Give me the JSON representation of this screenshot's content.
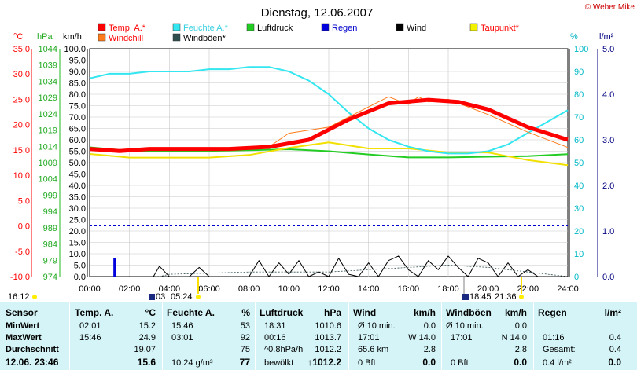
{
  "header": {
    "title": "Dienstag, 12.06.2007",
    "copyright": "© Weber Mike"
  },
  "legend": [
    {
      "label": "Temp. A.*",
      "color": "#ff0000",
      "text_color": "#ff0000"
    },
    {
      "label": "Feuchte A.*",
      "color": "#33e6f0",
      "text_color": "#33d0e0"
    },
    {
      "label": "Luftdruck",
      "color": "#22cc22",
      "text_color": "#000000"
    },
    {
      "label": "Regen",
      "color": "#0000dd",
      "text_color": "#0000cc"
    },
    {
      "label": "Wind",
      "color": "#000000",
      "text_color": "#000000"
    },
    {
      "label": "Taupunkt*",
      "color": "#f2f200",
      "text_color": "#ff0000"
    },
    {
      "label": "Windchill",
      "color": "#ff7a1a",
      "text_color": "#ff0000"
    },
    {
      "label": "Windböen*",
      "color": "#2f4f4f",
      "text_color": "#000000"
    }
  ],
  "axis_headers": {
    "temp": "°C",
    "pressure": "hPa",
    "wind": "km/h",
    "humidity": "%",
    "rain": "l/m²"
  },
  "events": {
    "left_time": "16:12",
    "sunrise_label": "03",
    "sunrise_time": "05:24",
    "sunset_time": "18:45",
    "moon_time": "21:36"
  },
  "chart_data": {
    "type": "line",
    "x_ticks": [
      "00:00",
      "02:00",
      "04:00",
      "06:00",
      "08:00",
      "10:00",
      "12:00",
      "14:00",
      "16:00",
      "18:00",
      "20:00",
      "22:00",
      "24:00"
    ],
    "axes": {
      "temp": {
        "min": -10,
        "max": 35,
        "ticks": [
          "35.0",
          "30.0",
          "25.0",
          "20.0",
          "15.0",
          "10.0",
          "5.0",
          "0.0",
          "-5.0",
          "-10.0"
        ]
      },
      "pressure": {
        "min": 974,
        "max": 1044,
        "ticks": [
          "1044",
          "1039",
          "1034",
          "1029",
          "1024",
          "1019",
          "1014",
          "1009",
          "1004",
          "999",
          "994",
          "989",
          "984",
          "979",
          "974"
        ]
      },
      "wind": {
        "min": 0,
        "max": 100,
        "ticks": [
          "100.0",
          "95.0",
          "90.0",
          "85.0",
          "80.0",
          "75.0",
          "70.0",
          "65.0",
          "60.0",
          "55.0",
          "50.0",
          "45.0",
          "40.0",
          "35.0",
          "30.0",
          "25.0",
          "20.0",
          "15.0",
          "10.0",
          "5.0",
          "0.0"
        ]
      },
      "humidity": {
        "min": 0,
        "max": 100,
        "ticks": [
          "100",
          "90",
          "80",
          "70",
          "60",
          "50",
          "40",
          "30",
          "20",
          "10",
          "0"
        ]
      },
      "rain": {
        "min": 0,
        "max": 5,
        "ticks": [
          "5.0",
          "4.0",
          "3.0",
          "2.0",
          "1.0",
          "0.0"
        ]
      }
    },
    "series": [
      {
        "name": "Temp. A.*",
        "axis": "temp",
        "x": [
          0,
          1.5,
          3,
          4.5,
          7,
          9,
          11,
          13,
          15,
          17,
          18.5,
          20,
          22,
          24
        ],
        "y": [
          15.2,
          14.8,
          15.2,
          15.2,
          15.2,
          15.6,
          17.0,
          21.0,
          24.2,
          24.9,
          24.5,
          23.0,
          19.5,
          17.0
        ]
      },
      {
        "name": "Windchill",
        "axis": "temp",
        "x": [
          0,
          1.5,
          3,
          4.5,
          7,
          9,
          10,
          12,
          14,
          15,
          16,
          16.5,
          17,
          18,
          19,
          20,
          22,
          24
        ],
        "y": [
          15.0,
          14.6,
          15.0,
          15.0,
          15.0,
          15.6,
          18.3,
          19.5,
          23.5,
          25.5,
          24.0,
          25.5,
          24.5,
          25.0,
          23.5,
          22.0,
          18.5,
          15.5
        ]
      },
      {
        "name": "Feuchte A.*",
        "axis": "humidity",
        "x": [
          0,
          1,
          2,
          3,
          4,
          5,
          6,
          7,
          8,
          9,
          10,
          11,
          12,
          13,
          14,
          15,
          16,
          17,
          18,
          19,
          20,
          21,
          22,
          23,
          24
        ],
        "y": [
          87,
          89,
          89,
          90,
          90,
          90,
          91,
          91,
          92,
          92,
          90,
          86,
          80,
          72,
          65,
          60,
          57,
          55,
          54,
          54,
          55,
          58,
          63,
          68,
          73
        ]
      },
      {
        "name": "Luftdruck",
        "axis": "pressure",
        "x": [
          0,
          2,
          4,
          6,
          8,
          10,
          12,
          14,
          16,
          18,
          20,
          22,
          24
        ],
        "y": [
          1013.7,
          1012.6,
          1012.6,
          1012.6,
          1012.8,
          1013.1,
          1012.5,
          1011.5,
          1010.6,
          1010.6,
          1010.8,
          1011.0,
          1011.6
        ]
      },
      {
        "name": "Taupunkt*",
        "axis": "temp",
        "x": [
          0,
          2,
          4,
          6,
          8,
          10,
          12,
          14,
          16,
          18,
          20,
          22,
          23,
          24
        ],
        "y": [
          14.2,
          13.5,
          13.5,
          13.5,
          14.0,
          15.4,
          16.5,
          15.3,
          15.3,
          14.5,
          14.5,
          13.0,
          12.5,
          12.0
        ]
      },
      {
        "name": "Wind",
        "axis": "wind",
        "x": [
          0,
          3.2,
          3.5,
          4,
          5,
          5.5,
          6,
          8,
          8.5,
          9,
          9.5,
          10,
          10.5,
          11,
          11.5,
          12,
          12.5,
          13,
          13.5,
          14,
          14.5,
          15,
          15.5,
          16,
          16.5,
          17,
          17.5,
          18,
          18.5,
          19,
          19.5,
          20,
          20.5,
          21,
          21.5,
          22,
          22.5,
          23,
          24
        ],
        "y": [
          0,
          0,
          4.5,
          0,
          0,
          4,
          0,
          0,
          7,
          0,
          6,
          1,
          7,
          0,
          2,
          0,
          8,
          1,
          0,
          6,
          0,
          7,
          9,
          3,
          0,
          7,
          3,
          9,
          4,
          0,
          8,
          6,
          0,
          6,
          0,
          3,
          0,
          0,
          0
        ]
      },
      {
        "name": "Windböen*",
        "axis": "wind",
        "x": [
          0,
          3.5,
          4,
          8,
          10,
          12,
          14,
          16,
          18,
          20,
          22,
          23,
          24
        ],
        "y": [
          0,
          0,
          1,
          2,
          2,
          2,
          3,
          4,
          5,
          4,
          2,
          1,
          0
        ]
      },
      {
        "name": "Regen",
        "axis": "rain",
        "type": "bar",
        "x": [
          1.25
        ],
        "y": [
          0.4
        ]
      }
    ],
    "reference_lines": [
      {
        "axis": "temp",
        "value": 0
      }
    ]
  },
  "table": {
    "headers": {
      "sensor": "Sensor",
      "temp": "Temp. A.",
      "temp_unit": "°C",
      "hum": "Feuchte A.",
      "hum_unit": "%",
      "press": "Luftdruck",
      "press_unit": "hPa",
      "wind": "Wind",
      "wind_unit": "km/h",
      "gust": "Windböen",
      "gust_unit": "km/h",
      "rain": "Regen",
      "rain_unit": "l/m²"
    },
    "rows": {
      "min": {
        "label": "MinWert",
        "temp_time": "02:01",
        "temp": "15.2",
        "hum_time": "15:46",
        "hum": "53",
        "press_time": "18:31",
        "press": "1010.6",
        "wind_label": "Ø 10 min.",
        "wind": "0.0",
        "gust_label": "Ø 10 min.",
        "gust": "0.0",
        "rain_time": "",
        "rain": ""
      },
      "max": {
        "label": "MaxWert",
        "temp_time": "15:46",
        "temp": "24.9",
        "hum_time": "03:01",
        "hum": "92",
        "press_time": "00:16",
        "press": "1013.7",
        "wind_label": "17:01",
        "wind": "W 14.0",
        "gust_label": "17:01",
        "gust": "N 14.0",
        "rain_time": "01:16",
        "rain": "0.4"
      },
      "avg": {
        "label": "Durchschnitt",
        "temp_time": "",
        "temp": "19.07",
        "hum_time": "",
        "hum": "75",
        "press_time": "^0.8hPa/h",
        "press": "1012.2",
        "wind_label": "65.6 km",
        "wind": "2.8",
        "gust_label": "",
        "gust": "2.8",
        "rain_time": "Gesamt:",
        "rain": "0.4"
      },
      "now": {
        "label": "12.06. 23:46",
        "temp_time": "",
        "temp": "15.6",
        "hum_time": "10.24 g/m³",
        "hum": "77",
        "press_time": "bewölkt",
        "press": "↑1012.2",
        "wind_label": "0 Bft",
        "wind": "0.0",
        "gust_label": "0 Bft",
        "gust": "0.0",
        "rain_time": "0.4 l/m²",
        "rain": "0.0"
      }
    }
  }
}
